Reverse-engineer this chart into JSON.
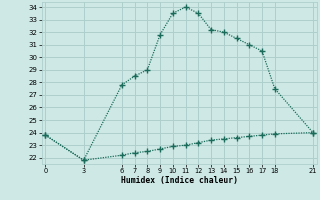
{
  "xlabel": "Humidex (Indice chaleur)",
  "line1_x": [
    0,
    3,
    6,
    7,
    8,
    9,
    10,
    11,
    12,
    13,
    14,
    15,
    16,
    17,
    18,
    21
  ],
  "line1_y": [
    23.8,
    21.8,
    27.8,
    28.5,
    29.0,
    31.8,
    33.5,
    34.0,
    33.5,
    32.2,
    32.0,
    31.5,
    31.0,
    30.5,
    27.5,
    24.0
  ],
  "line2_x": [
    0,
    3,
    6,
    7,
    8,
    9,
    10,
    11,
    12,
    13,
    14,
    15,
    16,
    17,
    18,
    21
  ],
  "line2_y": [
    23.8,
    21.8,
    22.2,
    22.4,
    22.5,
    22.7,
    22.9,
    23.0,
    23.2,
    23.4,
    23.5,
    23.6,
    23.7,
    23.8,
    23.9,
    24.0
  ],
  "line_color": "#1a6b5a",
  "bg_color": "#cde8e5",
  "grid_color": "#aecfcc",
  "ylim_min": 21.5,
  "ylim_max": 34.4,
  "xlim_min": -0.3,
  "xlim_max": 21.3,
  "yticks": [
    22,
    23,
    24,
    25,
    26,
    27,
    28,
    29,
    30,
    31,
    32,
    33,
    34
  ],
  "xticks": [
    0,
    3,
    6,
    7,
    8,
    9,
    10,
    11,
    12,
    13,
    14,
    15,
    16,
    17,
    18,
    21
  ],
  "markersize": 4.5,
  "linewidth": 0.9
}
